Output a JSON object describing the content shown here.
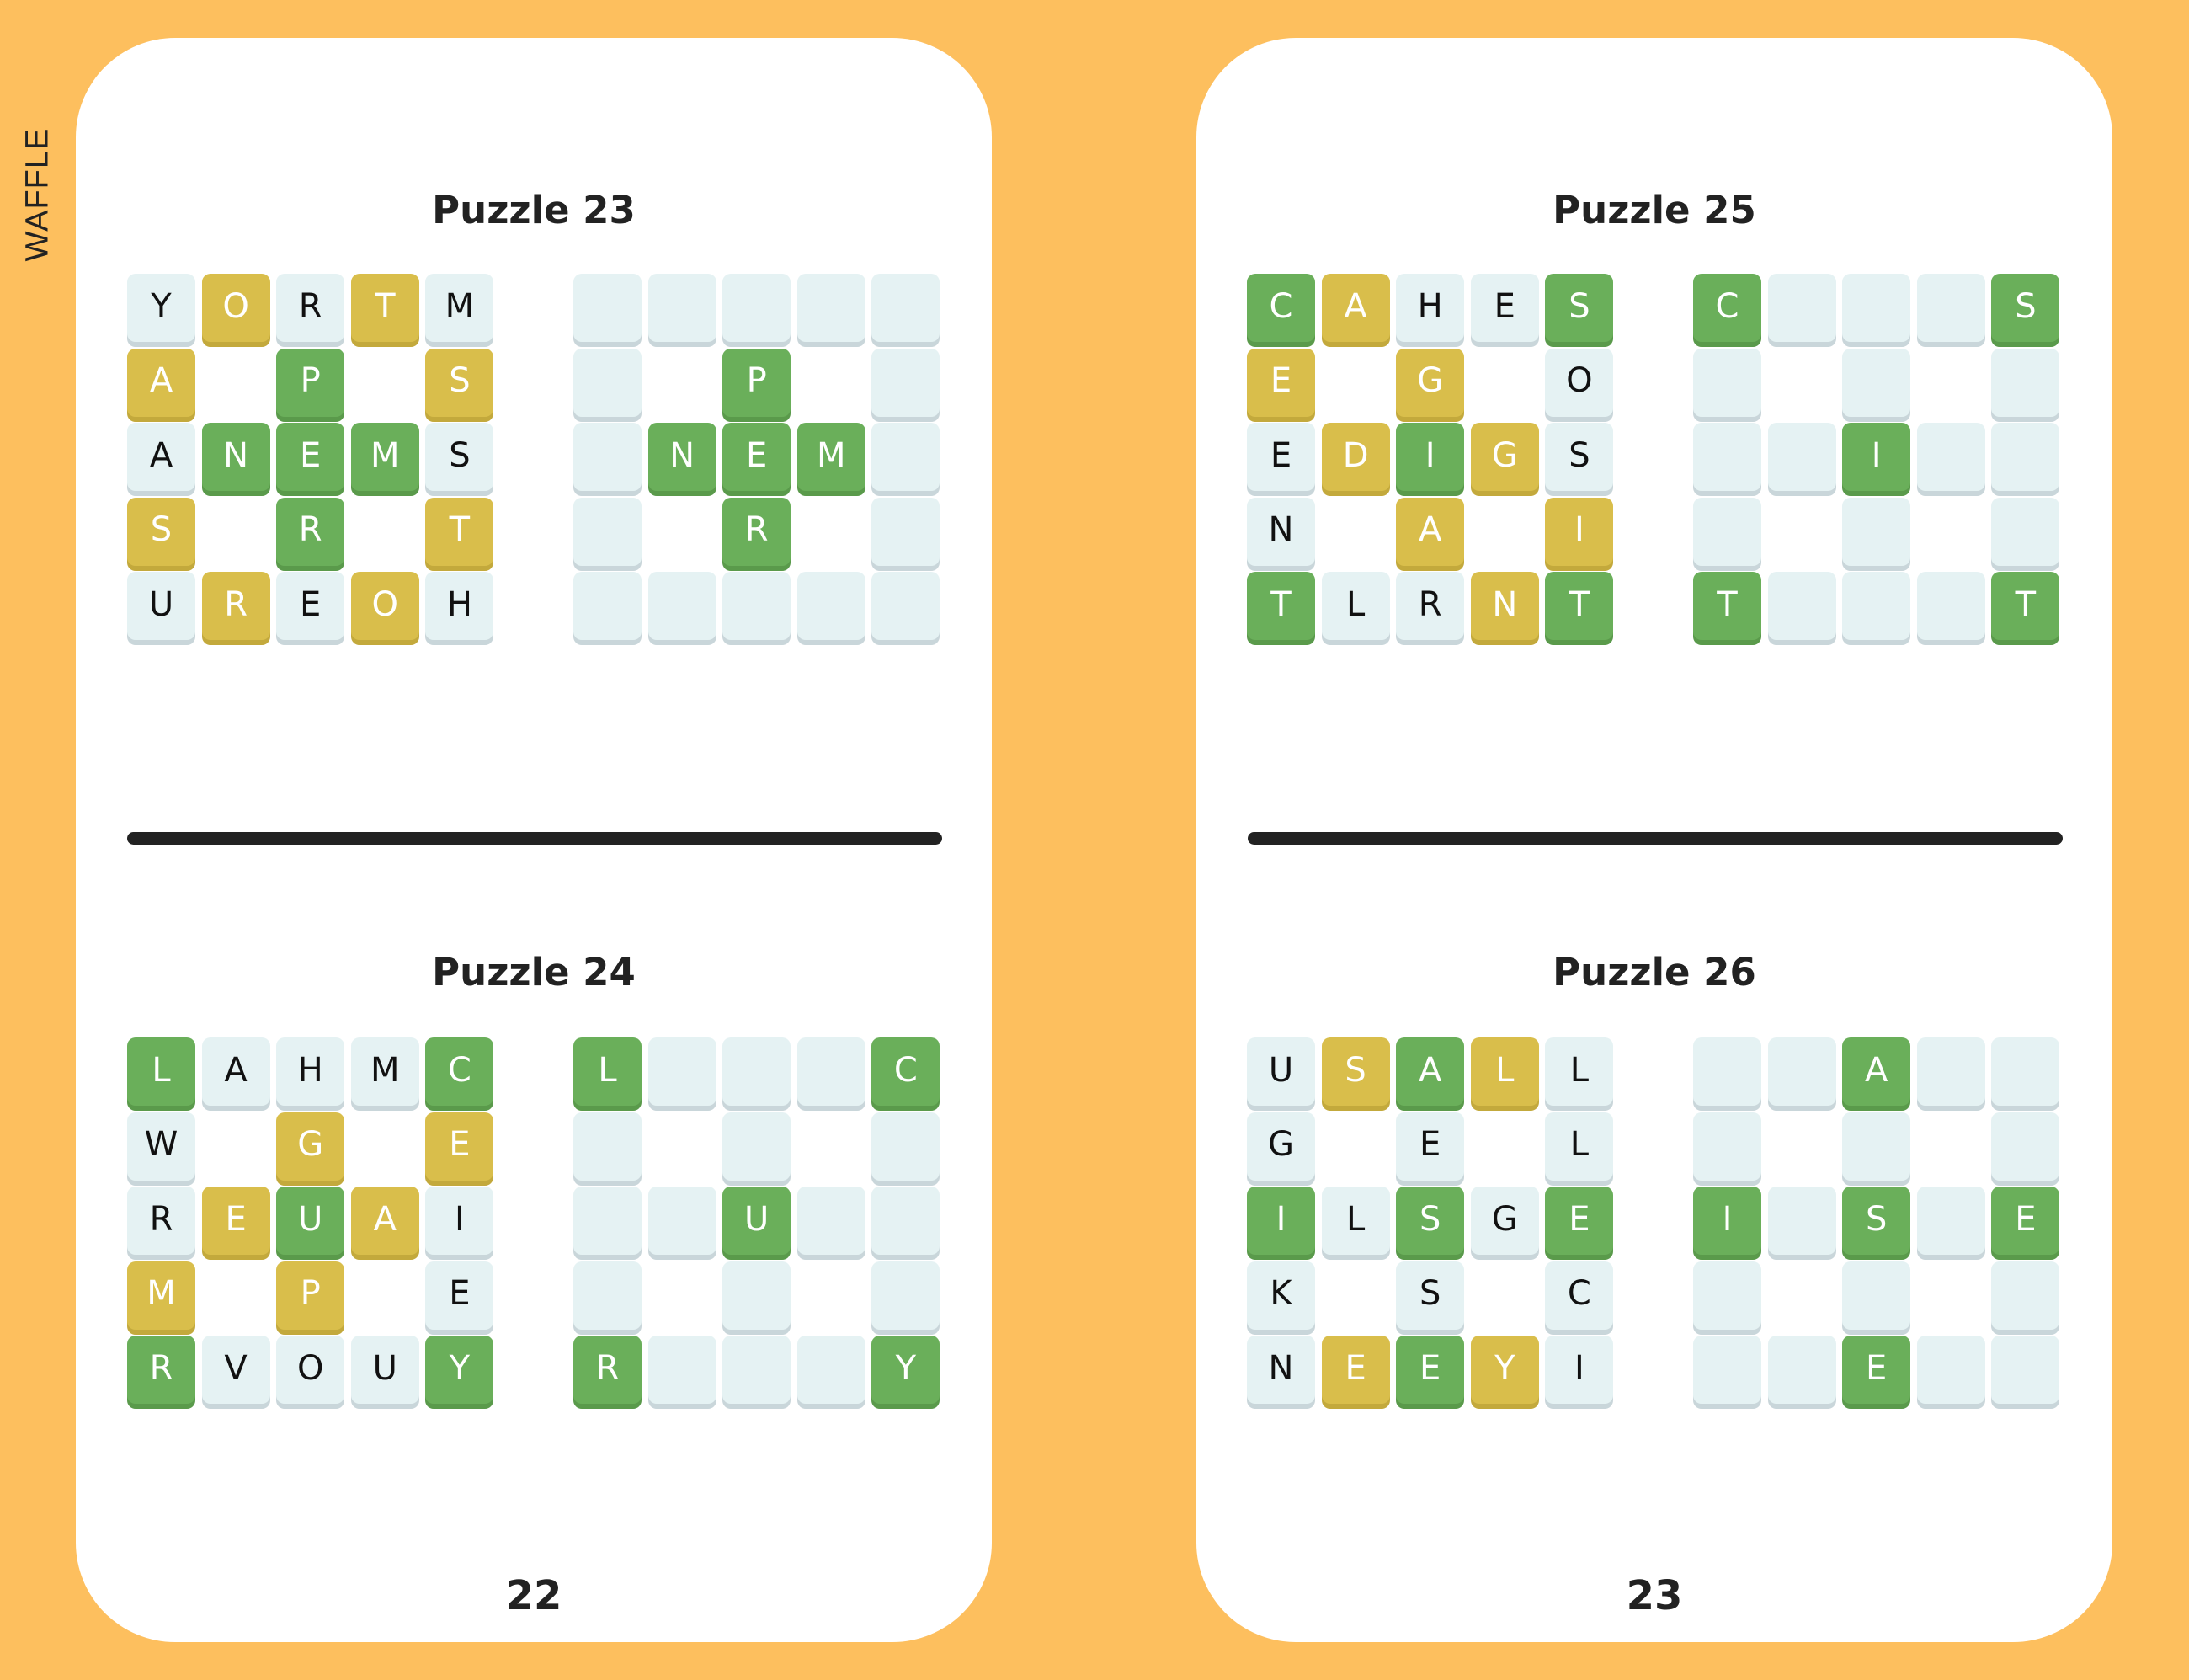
{
  "side_label": "WAFFLE",
  "colors": {
    "background": "#FDBF5E",
    "correct": "#6AAF5A",
    "misplaced": "#D9BE4B",
    "neutral": "#E5F2F3",
    "text": "#222222"
  },
  "pages": [
    {
      "page_number": "22",
      "puzzles": [
        {
          "title": "Puzzle 23",
          "letters": [
            "YORTM",
            "A P S",
            "ANEMS",
            "S R T",
            "UREOH"
          ],
          "states": [
            "nynyn",
            "y g y",
            "ngggn",
            "y g y",
            "nynyn"
          ],
          "solution": [
            "     ",
            "  P  ",
            " NEM ",
            "  R  ",
            "     "
          ]
        },
        {
          "title": "Puzzle 24",
          "letters": [
            "LAHMC",
            "W G E",
            "REUAI",
            "M P E",
            "RVOUY"
          ],
          "states": [
            "gnnng",
            "n y y",
            "nygyn",
            "y y n",
            "gnnng"
          ],
          "solution": [
            "L   C",
            "     ",
            "  U  ",
            "     ",
            "R   Y"
          ]
        }
      ]
    },
    {
      "page_number": "23",
      "puzzles": [
        {
          "title": "Puzzle 25",
          "letters": [
            "CAHES",
            "E G O",
            "EDIGS",
            "N A I",
            "TLRNT"
          ],
          "states": [
            "gynng",
            "y y n",
            "nygyn",
            "n y y",
            "gnnyg"
          ],
          "solution": [
            "C   S",
            "     ",
            "  I  ",
            "     ",
            "T   T"
          ]
        },
        {
          "title": "Puzzle 26",
          "letters": [
            "USALL",
            "G E L",
            "ILSGE",
            "K S C",
            "NEEYI"
          ],
          "states": [
            "nygyn",
            "n n n",
            "gngng",
            "n n n",
            "nygyn"
          ],
          "solution": [
            "  A  ",
            "     ",
            "I S E",
            "     ",
            "  E  "
          ]
        }
      ]
    }
  ]
}
